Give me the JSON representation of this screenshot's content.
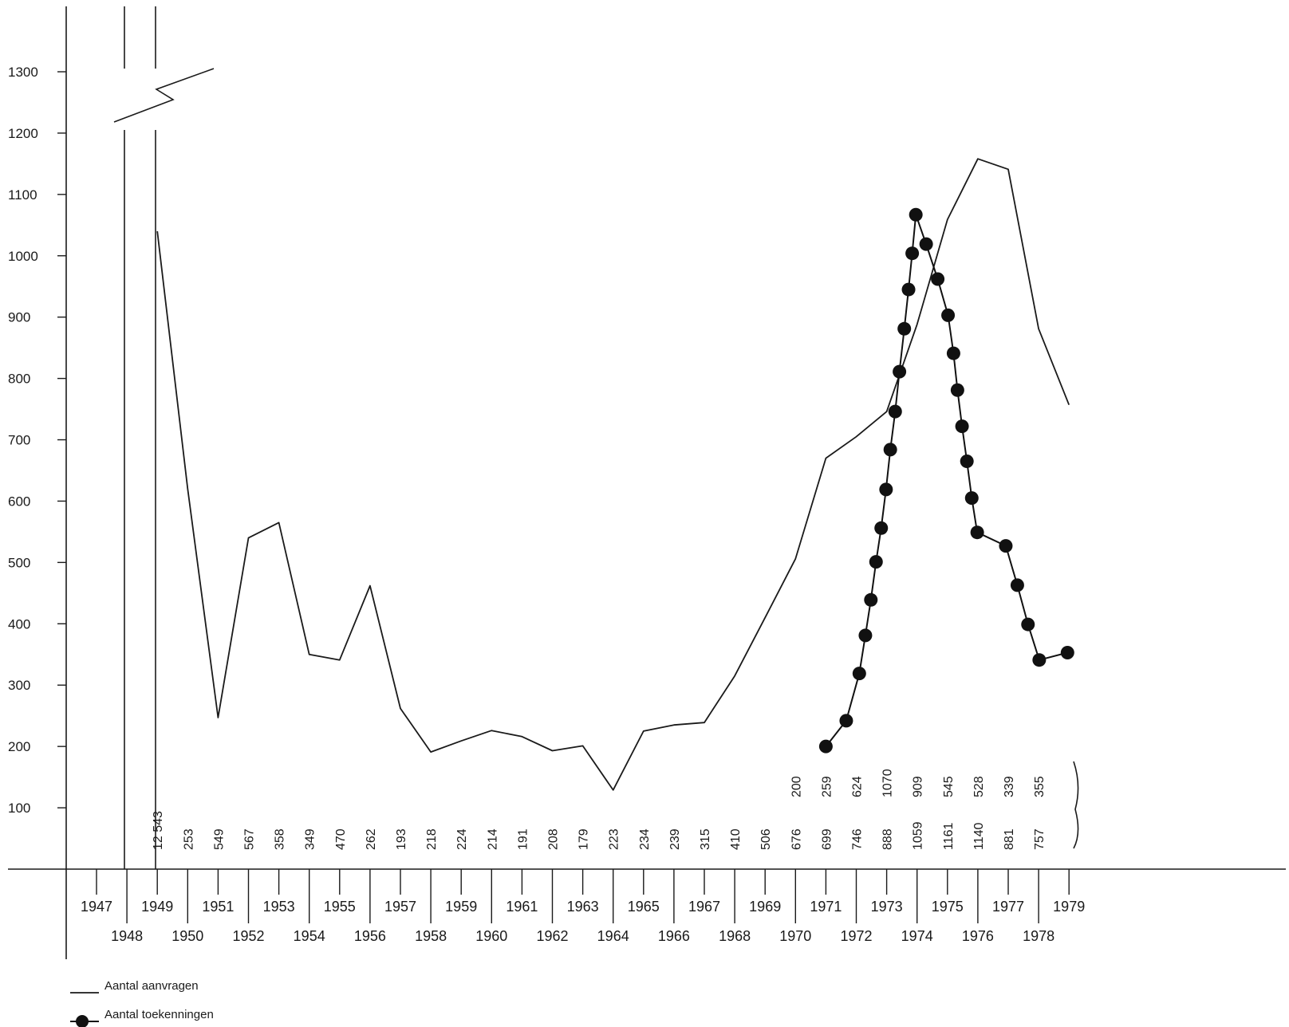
{
  "chart_data": {
    "type": "line",
    "title": "",
    "xlabel": "",
    "ylabel": "",
    "ylim": [
      0,
      1300
    ],
    "y_ticks": [
      100,
      200,
      300,
      400,
      500,
      600,
      700,
      800,
      900,
      1000,
      1100,
      1200,
      1300
    ],
    "x_years": [
      1947,
      1948,
      1949,
      1950,
      1951,
      1952,
      1953,
      1954,
      1955,
      1956,
      1957,
      1958,
      1959,
      1960,
      1961,
      1962,
      1963,
      1964,
      1965,
      1966,
      1967,
      1968,
      1969,
      1970,
      1971,
      1972,
      1973,
      1974,
      1975,
      1976,
      1977,
      1978,
      1979
    ],
    "x_tick_labels": [
      "1947",
      "1948",
      "1949",
      "1950",
      "1951",
      "1952",
      "1953",
      "1954",
      "1955",
      "1956",
      "1957",
      "1958",
      "1959",
      "1960",
      "1961",
      "1962",
      "1963",
      "1964",
      "1965",
      "1966",
      "1967",
      "1968",
      "1969",
      "1970",
      "1971",
      "1972",
      "1973",
      "1974",
      "1975",
      "1976",
      "1977",
      "1978",
      "1979"
    ],
    "axis_break": "1948-1949",
    "series": [
      {
        "name": "Aantal aanvragen",
        "style": "line",
        "points": [
          [
            1949,
            1040
          ],
          [
            1950,
            620
          ],
          [
            1951,
            247
          ],
          [
            1952,
            540
          ],
          [
            1953,
            565
          ],
          [
            1954,
            350
          ],
          [
            1955,
            341
          ],
          [
            1956,
            462
          ],
          [
            1957,
            262
          ],
          [
            1958,
            191
          ],
          [
            1959,
            209
          ],
          [
            1960,
            226
          ],
          [
            1961,
            216
          ],
          [
            1962,
            193
          ],
          [
            1963,
            201
          ],
          [
            1964,
            129
          ],
          [
            1965,
            225
          ],
          [
            1966,
            235
          ],
          [
            1967,
            239
          ],
          [
            1968,
            315
          ],
          [
            1969,
            410
          ],
          [
            1970,
            506
          ],
          [
            1971,
            670
          ],
          [
            1972,
            705
          ],
          [
            1973,
            746
          ],
          [
            1974,
            888
          ],
          [
            1975,
            1059
          ],
          [
            1976,
            1158
          ],
          [
            1977,
            1141
          ],
          [
            1978,
            881
          ],
          [
            1979,
            757
          ]
        ]
      },
      {
        "name": "Aantal toekenningen",
        "style": "line-dots",
        "points": [
          [
            1971,
            200
          ],
          [
            1971.67,
            242
          ],
          [
            1972.1,
            319
          ],
          [
            1972.3,
            381
          ],
          [
            1972.48,
            439
          ],
          [
            1972.65,
            501
          ],
          [
            1972.82,
            556
          ],
          [
            1972.98,
            619
          ],
          [
            1973.12,
            684
          ],
          [
            1973.28,
            746
          ],
          [
            1973.42,
            811
          ],
          [
            1973.58,
            881
          ],
          [
            1973.72,
            945
          ],
          [
            1973.84,
            1004
          ],
          [
            1973.96,
            1067
          ],
          [
            1974.3,
            1019
          ],
          [
            1974.68,
            962
          ],
          [
            1975.02,
            903
          ],
          [
            1975.2,
            841
          ],
          [
            1975.33,
            781
          ],
          [
            1975.48,
            722
          ],
          [
            1975.64,
            665
          ],
          [
            1975.8,
            605
          ],
          [
            1975.98,
            549
          ],
          [
            1976.92,
            527
          ],
          [
            1977.3,
            463
          ],
          [
            1977.65,
            399
          ],
          [
            1978.02,
            341
          ],
          [
            1978.95,
            353
          ]
        ]
      }
    ],
    "value_labels_bottom": [
      {
        "year": 1949,
        "text": "12 543"
      },
      {
        "year": 1950,
        "text": "253"
      },
      {
        "year": 1951,
        "text": "549"
      },
      {
        "year": 1952,
        "text": "567"
      },
      {
        "year": 1953,
        "text": "358"
      },
      {
        "year": 1954,
        "text": "349"
      },
      {
        "year": 1955,
        "text": "470"
      },
      {
        "year": 1956,
        "text": "262"
      },
      {
        "year": 1957,
        "text": "193"
      },
      {
        "year": 1958,
        "text": "218"
      },
      {
        "year": 1959,
        "text": "224"
      },
      {
        "year": 1960,
        "text": "214"
      },
      {
        "year": 1961,
        "text": "191"
      },
      {
        "year": 1962,
        "text": "208"
      },
      {
        "year": 1963,
        "text": "179"
      },
      {
        "year": 1964,
        "text": "223"
      },
      {
        "year": 1965,
        "text": "234"
      },
      {
        "year": 1966,
        "text": "239"
      },
      {
        "year": 1967,
        "text": "315"
      },
      {
        "year": 1968,
        "text": "410"
      },
      {
        "year": 1969,
        "text": "506"
      },
      {
        "year": 1970,
        "text": "676"
      },
      {
        "year": 1971,
        "text": "699"
      },
      {
        "year": 1972,
        "text": "746"
      },
      {
        "year": 1973,
        "text": "888"
      },
      {
        "year": 1974,
        "text": "1059"
      },
      {
        "year": 1975,
        "text": "1161"
      },
      {
        "year": 1976,
        "text": "1140"
      },
      {
        "year": 1977,
        "text": "881"
      },
      {
        "year": 1978,
        "text": "757"
      }
    ],
    "value_labels_top": [
      {
        "year": 1970,
        "text": "200"
      },
      {
        "year": 1971,
        "text": "259"
      },
      {
        "year": 1972,
        "text": "624"
      },
      {
        "year": 1973,
        "text": "1070"
      },
      {
        "year": 1974,
        "text": "909"
      },
      {
        "year": 1975,
        "text": "545"
      },
      {
        "year": 1976,
        "text": "528"
      },
      {
        "year": 1977,
        "text": "339"
      },
      {
        "year": 1978,
        "text": "355"
      }
    ],
    "legend": {
      "placement": "bottom-left",
      "entries": [
        {
          "label": "Aantal aanvragen",
          "marker": "line"
        },
        {
          "label": "Aantal toekenningen",
          "marker": "line-dot"
        }
      ]
    }
  }
}
